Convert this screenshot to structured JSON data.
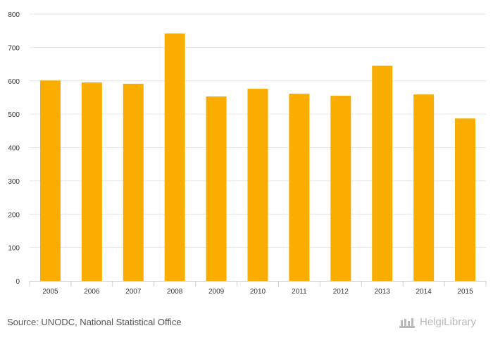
{
  "chart_data": {
    "type": "bar",
    "categories": [
      "2005",
      "2006",
      "2007",
      "2008",
      "2009",
      "2010",
      "2011",
      "2012",
      "2013",
      "2014",
      "2015"
    ],
    "values": [
      601,
      595,
      591,
      742,
      553,
      576,
      561,
      555,
      645,
      559,
      487
    ],
    "ylim": [
      0,
      800
    ],
    "yticks": [
      0,
      100,
      200,
      300,
      400,
      500,
      600,
      700,
      800
    ],
    "grid": true,
    "bar_color": "#f9ad00"
  },
  "footer": {
    "source": "Source: UNODC, National Statistical Office",
    "brand": "HelgiLibrary"
  }
}
